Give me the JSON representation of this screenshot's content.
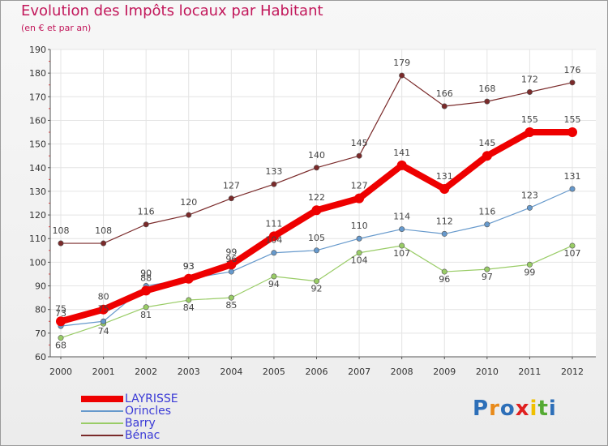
{
  "chart_data": {
    "type": "line",
    "title": "Evolution des Impôts locaux par Habitant",
    "subtitle": "(en € et par an)",
    "categories": [
      "2000",
      "2001",
      "2002",
      "2003",
      "2004",
      "2005",
      "2006",
      "2007",
      "2008",
      "2009",
      "2010",
      "2011",
      "2012"
    ],
    "ylim": [
      60,
      190
    ],
    "yticks": [
      60,
      70,
      80,
      90,
      100,
      110,
      120,
      130,
      140,
      150,
      160,
      170,
      180,
      190
    ],
    "series": [
      {
        "name": "LAYRISSE",
        "color": "#ee0000",
        "values": [
          75,
          80,
          88,
          93,
          99,
          111,
          122,
          127,
          141,
          131,
          145,
          155,
          155
        ]
      },
      {
        "name": "Orincles",
        "color": "#6699cc",
        "values": [
          73,
          75,
          90,
          93,
          96,
          104,
          105,
          110,
          114,
          112,
          116,
          123,
          131
        ]
      },
      {
        "name": "Barry",
        "color": "#99cc66",
        "values": [
          68,
          74,
          81,
          84,
          85,
          94,
          92,
          104,
          107,
          96,
          97,
          99,
          107
        ]
      },
      {
        "name": "Bénac",
        "color": "#7a2a2a",
        "values": [
          108,
          108,
          116,
          120,
          127,
          133,
          140,
          145,
          179,
          166,
          168,
          172,
          176
        ]
      }
    ],
    "legend_position": "bottom-left"
  },
  "logo": {
    "letters": [
      "P",
      "r",
      "o",
      "x",
      "i",
      "t",
      "i"
    ],
    "colors": [
      "#2d6fb8",
      "#e88a1a",
      "#2d6fb8",
      "#e02020",
      "#f0c000",
      "#55aa33",
      "#2d6fb8"
    ]
  }
}
